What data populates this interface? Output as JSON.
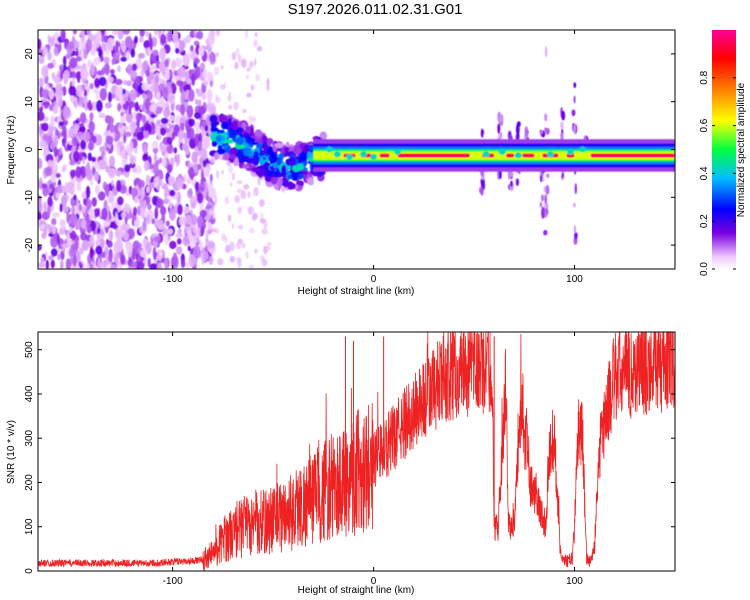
{
  "title": "S197.2026.011.02.31.G01",
  "chart_data": [
    {
      "type": "heatmap",
      "xlabel": "Height of straight line (km)",
      "ylabel": "Frequency (Hz)",
      "xlim": [
        -167,
        150
      ],
      "ylim": [
        -25,
        25
      ],
      "xticks": [
        -100,
        0,
        100
      ],
      "yticks": [
        -20,
        -10,
        0,
        10,
        20
      ],
      "xtick_labels": [
        "-100",
        "0",
        "100"
      ],
      "ytick_labels": [
        "-20",
        "-10",
        "0",
        "10",
        "20"
      ],
      "colorbar": {
        "label": "Normalized spectral amplitude",
        "range": [
          0,
          1
        ],
        "ticks": [
          0,
          0.2,
          0.4,
          0.6,
          0.8
        ],
        "tick_labels": [
          "0.0",
          "0.2",
          "0.4",
          "0.6",
          "0.8"
        ],
        "colormap": [
          "#ffffff",
          "#e8c8f8",
          "#7a00e0",
          "#0000ff",
          "#00bfff",
          "#00ff00",
          "#ffff00",
          "#ff8000",
          "#ff0000",
          "#ff00c0"
        ]
      },
      "noise_region": {
        "x": [
          -167,
          -80
        ],
        "freq": [
          -25,
          25
        ],
        "amplitude": 0.15
      },
      "transition_region": {
        "x": [
          -80,
          -25
        ],
        "freq": [
          -7,
          6
        ],
        "amplitude": 0.45
      },
      "carrier": {
        "x": [
          -30,
          150
        ],
        "freq": [
          -1.5,
          -1
        ],
        "amplitude_peak": 0.95
      },
      "carrier_points": [
        {
          "x": -80,
          "f": 3,
          "a": 0.5
        },
        {
          "x": -70,
          "f": 2,
          "a": 0.5
        },
        {
          "x": -60,
          "f": 0,
          "a": 0.45
        },
        {
          "x": -50,
          "f": -3,
          "a": 0.45
        },
        {
          "x": -40,
          "f": -4,
          "a": 0.45
        },
        {
          "x": -30,
          "f": -2,
          "a": 0.45
        },
        {
          "x": -20,
          "f": -1,
          "a": 0.6
        },
        {
          "x": -10,
          "f": -1.5,
          "a": 0.7
        },
        {
          "x": 0,
          "f": -1.5,
          "a": 0.85
        },
        {
          "x": 10,
          "f": -1,
          "a": 0.9
        },
        {
          "x": 50,
          "f": -1,
          "a": 0.95
        },
        {
          "x": 100,
          "f": -1,
          "a": 0.9
        },
        {
          "x": 150,
          "f": -1,
          "a": 0.95
        }
      ]
    },
    {
      "type": "line",
      "xlabel": "Height of straight line (km)",
      "ylabel": "SNR (10 * v/v)",
      "xlim": [
        -167,
        150
      ],
      "ylim": [
        0,
        540
      ],
      "xticks": [
        -100,
        0,
        100
      ],
      "yticks": [
        0,
        100,
        200,
        300,
        400,
        500
      ],
      "xtick_labels": [
        "-100",
        "0",
        "100"
      ],
      "ytick_labels": [
        "0",
        "100",
        "200",
        "300",
        "400",
        "500"
      ],
      "color": "#ee2222",
      "series": [
        {
          "name": "SNR",
          "x": [
            -167,
            -150,
            -130,
            -110,
            -95,
            -85,
            -80,
            -75,
            -65,
            -55,
            -45,
            -35,
            -25,
            -15,
            -10,
            0,
            10,
            20,
            30,
            40,
            50,
            55,
            59,
            60,
            62,
            66,
            67,
            70,
            74,
            75,
            76,
            77,
            78,
            82,
            86,
            87,
            89,
            90,
            93,
            96,
            99,
            100,
            102,
            104,
            106,
            108,
            110,
            113,
            120,
            130,
            140,
            150
          ],
          "y": [
            18,
            18,
            18,
            18,
            22,
            25,
            40,
            70,
            100,
            110,
            125,
            150,
            180,
            200,
            220,
            250,
            300,
            360,
            410,
            450,
            460,
            460,
            460,
            100,
            100,
            440,
            100,
            110,
            420,
            250,
            300,
            290,
            200,
            150,
            100,
            260,
            290,
            300,
            40,
            20,
            30,
            100,
            340,
            300,
            30,
            20,
            60,
            300,
            440,
            450,
            470,
            460
          ]
        }
      ],
      "spikes": [
        {
          "x": -14,
          "y": 530
        },
        {
          "x": -10,
          "y": 520
        },
        {
          "x": 5,
          "y": 530
        },
        {
          "x": 60,
          "y": 530
        }
      ]
    }
  ]
}
